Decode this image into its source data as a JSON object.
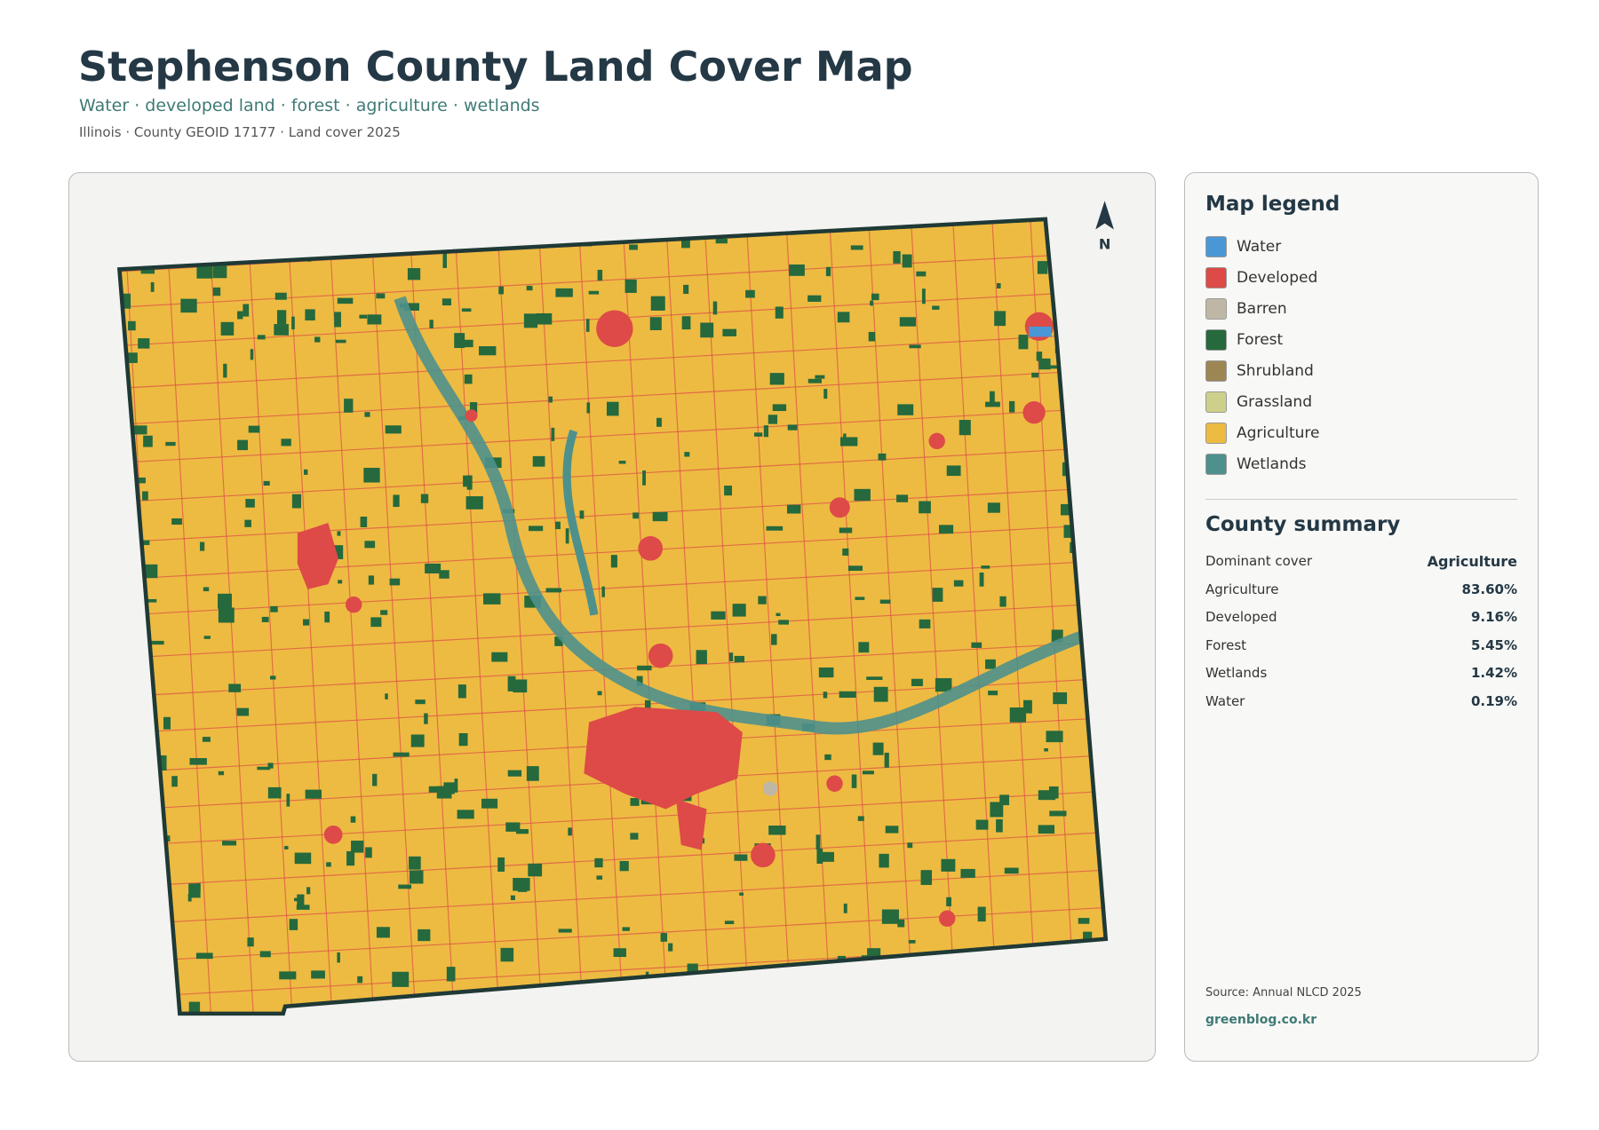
{
  "header": {
    "title": "Stephenson County Land Cover Map",
    "subtitle": "Water · developed land · forest · agriculture · wetlands",
    "meta": "Illinois · County GEOID 17177 · Land cover 2025"
  },
  "map": {
    "north": "N"
  },
  "legend": {
    "title": "Map legend",
    "items": [
      {
        "name": "Water",
        "color": "#4a97d6"
      },
      {
        "name": "Developed",
        "color": "#dd4a47"
      },
      {
        "name": "Barren",
        "color": "#bfb7a6"
      },
      {
        "name": "Forest",
        "color": "#25693d"
      },
      {
        "name": "Shrubland",
        "color": "#9c8654"
      },
      {
        "name": "Grassland",
        "color": "#cdd08b"
      },
      {
        "name": "Agriculture",
        "color": "#edbb42"
      },
      {
        "name": "Wetlands",
        "color": "#4e918c"
      }
    ]
  },
  "summary": {
    "title": "County summary",
    "rows": [
      [
        "Dominant cover",
        "Agriculture"
      ],
      [
        "Agriculture",
        "83.60%"
      ],
      [
        "Developed",
        "9.16%"
      ],
      [
        "Forest",
        "5.45%"
      ],
      [
        "Wetlands",
        "1.42%"
      ],
      [
        "Water",
        "0.19%"
      ]
    ]
  },
  "footer": {
    "source": "Source: Annual NLCD 2025",
    "credit": "greenblog.co.kr"
  }
}
